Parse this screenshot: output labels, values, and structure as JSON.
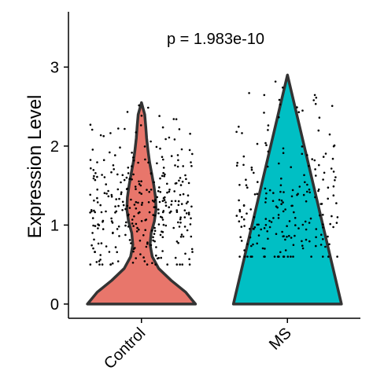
{
  "chart_data": {
    "type": "violin",
    "annotation": "p = 1.983e-10",
    "xlabel": "",
    "ylabel": "Expression Level",
    "ylim": [
      -0.18,
      3.7
    ],
    "yticks": [
      0,
      1,
      2,
      3
    ],
    "categories": [
      "Control",
      "MS"
    ],
    "series": [
      {
        "category": "Control",
        "color": "#e8766b",
        "max": 2.55,
        "density": [
          [
            0.0,
            1.0
          ],
          [
            0.15,
            0.82
          ],
          [
            0.3,
            0.55
          ],
          [
            0.45,
            0.32
          ],
          [
            0.6,
            0.2
          ],
          [
            0.75,
            0.16
          ],
          [
            0.9,
            0.18
          ],
          [
            1.05,
            0.24
          ],
          [
            1.2,
            0.27
          ],
          [
            1.35,
            0.26
          ],
          [
            1.5,
            0.23
          ],
          [
            1.65,
            0.19
          ],
          [
            1.8,
            0.15
          ],
          [
            1.95,
            0.12
          ],
          [
            2.1,
            0.095
          ],
          [
            2.25,
            0.08
          ],
          [
            2.4,
            0.06
          ],
          [
            2.55,
            0.0
          ]
        ]
      },
      {
        "category": "MS",
        "color": "#00bfc4",
        "max": 2.9,
        "density": [
          [
            0.0,
            1.0
          ],
          [
            2.9,
            0.0
          ]
        ]
      }
    ],
    "jitter_points": [
      {
        "category": "Control",
        "count": 330,
        "range": [
          0.5,
          2.55
        ]
      },
      {
        "category": "MS",
        "count": 220,
        "range": [
          0.6,
          2.9
        ]
      }
    ]
  },
  "colors": {
    "control_fill": "#e8766b",
    "outline": "#333333",
    "points": "#000000"
  }
}
